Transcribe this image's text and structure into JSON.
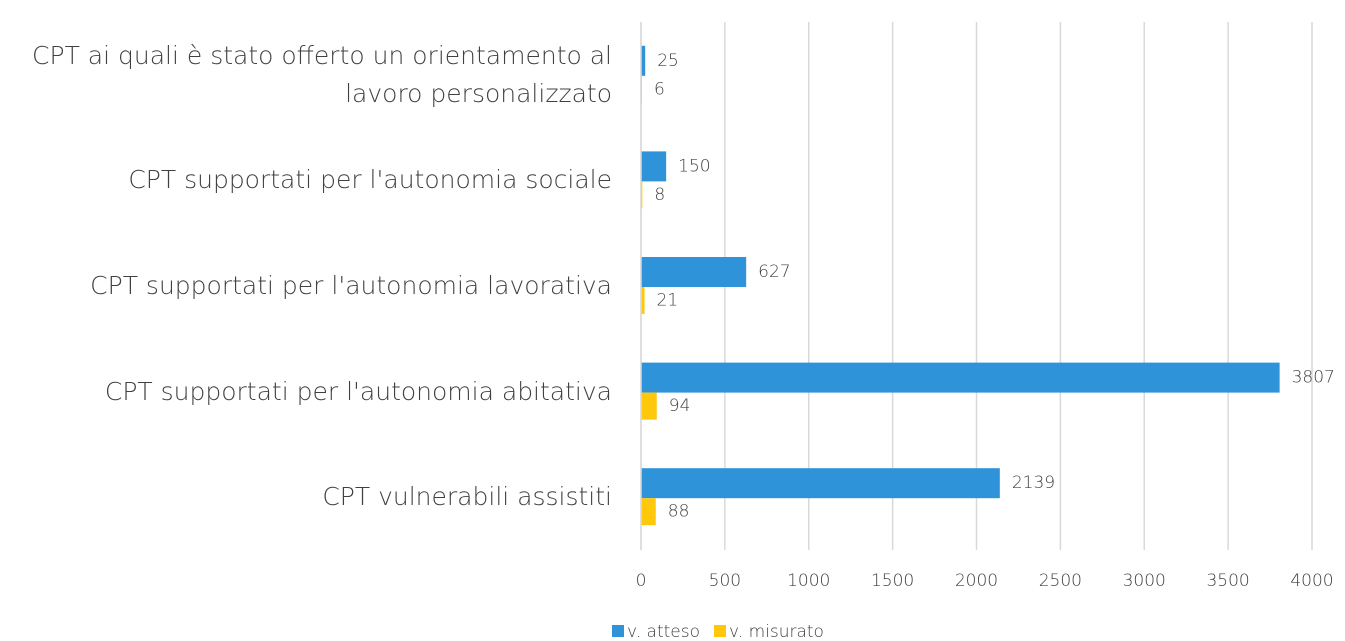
{
  "chart_data": {
    "type": "hbar",
    "categories": [
      "CPT ai quali è stato offerto un orientamento al lavoro personalizzato",
      "CPT supportati per l'autonomia sociale",
      "CPT supportati per l'autonomia lavorativa",
      "CPT supportati per l'autonomia abitativa",
      "CPT vulnerabili assistiti"
    ],
    "series": [
      {
        "name": "v. atteso",
        "color": "#2e93d9",
        "values": [
          25,
          150,
          627,
          3807,
          2139
        ]
      },
      {
        "name": "v. misurato",
        "color": "#ffc80a",
        "values": [
          6,
          8,
          21,
          94,
          88
        ]
      }
    ],
    "xlim": [
      0,
      4000
    ],
    "xticks": [
      0,
      500,
      1000,
      1500,
      2000,
      2500,
      3000,
      3500,
      4000
    ],
    "grid": true,
    "legend": "bottom"
  }
}
